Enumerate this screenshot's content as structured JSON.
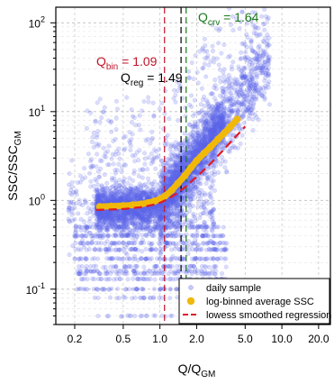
{
  "chart_data": {
    "type": "scatter",
    "xlabel": "Q/Q",
    "xlabel_sub": "GM",
    "ylabel": "SSC/SSC",
    "ylabel_sub": "GM",
    "x_log": true,
    "y_log": true,
    "xlim": [
      0.14,
      25
    ],
    "ylim": [
      0.04,
      150
    ],
    "x_ticks": [
      {
        "v": 0.2,
        "label": "0.2"
      },
      {
        "v": 0.5,
        "label": "0.5"
      },
      {
        "v": 1.0,
        "label": "1.0"
      },
      {
        "v": 2.0,
        "label": "2.0"
      },
      {
        "v": 5.0,
        "label": "5.0"
      },
      {
        "v": 10.0,
        "label": "10.0"
      },
      {
        "v": 20.0,
        "label": "20.0"
      }
    ],
    "y_ticks": [
      {
        "v": 0.1,
        "base": "10",
        "exp": "-1"
      },
      {
        "v": 1,
        "base": "10",
        "exp": "0"
      },
      {
        "v": 10,
        "base": "10",
        "exp": "1"
      },
      {
        "v": 100,
        "base": "10",
        "exp": "2"
      }
    ],
    "grid": true,
    "colors": {
      "points": "#5a64e6",
      "binned": "#f0b90a",
      "regression": "#e01b24",
      "q_bin": "#c0142a",
      "q_reg": "#000000",
      "q_crv": "#1a7a1a"
    },
    "vlines": [
      {
        "name": "Q_bin",
        "x": 1.09,
        "color": "#c0142a"
      },
      {
        "name": "Q_reg",
        "x": 1.49,
        "color": "#000000"
      },
      {
        "name": "Q_crv",
        "x": 1.64,
        "color": "#1a7a1a"
      }
    ],
    "annotations": {
      "q_bin": {
        "main": "Q",
        "sub": "bin",
        "text": " = 1.09"
      },
      "q_reg": {
        "main": "Q",
        "sub": "reg",
        "text": " = 1.49"
      },
      "q_crv": {
        "main": "Q",
        "sub": "crv",
        "text": " = 1.64"
      }
    },
    "series": [
      {
        "name": "log-binned average SSC",
        "x": [
          0.32,
          0.4,
          0.5,
          0.6,
          0.7,
          0.8,
          0.9,
          1.0,
          1.1,
          1.25,
          1.4,
          1.6,
          1.8,
          2.0,
          2.3,
          2.6,
          3.0,
          3.4,
          3.8,
          4.3
        ],
        "y": [
          0.85,
          0.86,
          0.87,
          0.89,
          0.91,
          0.94,
          0.98,
          1.03,
          1.12,
          1.3,
          1.55,
          1.9,
          2.35,
          2.8,
          3.4,
          4.0,
          4.9,
          5.8,
          6.8,
          8.2
        ]
      },
      {
        "name": "lowess smoothed regression",
        "x": [
          0.3,
          0.4,
          0.5,
          0.6,
          0.7,
          0.8,
          0.9,
          1.0,
          1.1,
          1.25,
          1.4,
          1.6,
          1.8,
          2.0,
          2.3,
          2.6,
          3.0,
          3.5,
          4.0,
          4.5,
          5.0
        ],
        "y": [
          0.78,
          0.79,
          0.8,
          0.82,
          0.84,
          0.87,
          0.9,
          0.94,
          1.0,
          1.1,
          1.22,
          1.4,
          1.62,
          1.85,
          2.2,
          2.6,
          3.2,
          4.0,
          4.9,
          5.8,
          6.8
        ]
      }
    ],
    "legend": {
      "placement": "bottom-right",
      "items": [
        {
          "label": "daily sample",
          "kind": "point"
        },
        {
          "label": "log-binned average SSC",
          "kind": "bigpoint"
        },
        {
          "label": "lowess smoothed regression",
          "kind": "dashed"
        }
      ]
    }
  }
}
